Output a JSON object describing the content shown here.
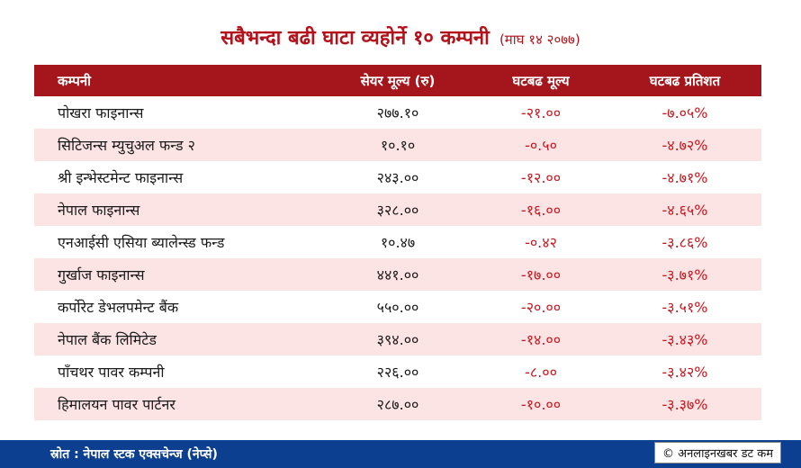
{
  "title": "सबैभन्दा बढी घाटा व्यहोर्ने १० कम्पनी",
  "title_date": "(माघ १४ २०७७)",
  "headers": {
    "company": "कम्पनी",
    "price": "सेयर मूल्य (रु)",
    "change": "घटबढ मूल्य",
    "percent": "घटबढ प्रतिशत"
  },
  "rows": [
    {
      "name": "पोखरा फाइनान्स",
      "price": "२७७.१०",
      "change": "-२१.००",
      "percent": "-७.०५%"
    },
    {
      "name": "सिटिजन्स म्युचुअल फन्ड २",
      "price": "१०.१०",
      "change": "-०.५०",
      "percent": "-४.७२%"
    },
    {
      "name": "श्री इन्भेस्टमेन्ट फाइनान्स",
      "price": "२४३.००",
      "change": "-१२.००",
      "percent": "-४.७१%"
    },
    {
      "name": "नेपाल फाइनान्स",
      "price": "३२८.००",
      "change": "-१६.००",
      "percent": "-४.६५%"
    },
    {
      "name": "एनआईसी एसिया ब्यालेन्स्ड फन्ड",
      "price": "१०.४७",
      "change": "-०.४२",
      "percent": "-३.८६%"
    },
    {
      "name": "गुर्खाज फाइनान्स",
      "price": "४४१.००",
      "change": "-१७.००",
      "percent": "-३.७१%"
    },
    {
      "name": "कर्पोरेट डेभलपमेन्ट बैंक",
      "price": "५५०.००",
      "change": "-२०.००",
      "percent": "-३.५१%"
    },
    {
      "name": "नेपाल बैंक लिमिटेड",
      "price": "३९४.००",
      "change": "-१४.००",
      "percent": "-३.४३%"
    },
    {
      "name": "पाँचथर पावर कम्पनी",
      "price": "२२६.००",
      "change": "-८.००",
      "percent": "-३.४२%"
    },
    {
      "name": "हिमालयन पावर पार्टनर",
      "price": "२८७.००",
      "change": "-१०.००",
      "percent": "-३.३७%"
    }
  ],
  "footer": {
    "source": "स्रोत : नेपाल स्टक एक्सचेन्ज (नेप्से)",
    "credit": "© अनलाइनखबर डट कम"
  },
  "colors": {
    "accent_red": "#a5161c",
    "negative_text": "#c7161e",
    "stripe": "#fce3e4",
    "footer_blue": "#0c3f8f"
  }
}
